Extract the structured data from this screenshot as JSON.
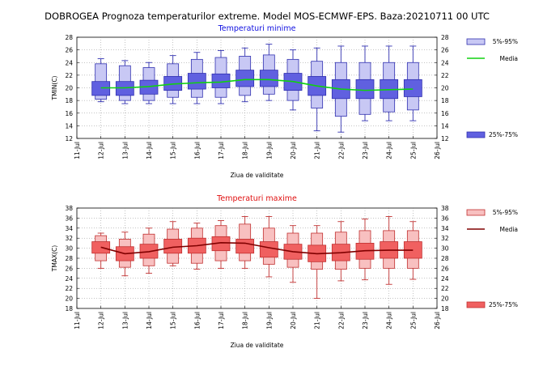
{
  "title": "DOBROGEA  Prognoza temperaturilor extreme.  Model MOS-ECMWF-EPS. Baza:20210711 00 UTC",
  "x_ticks": [
    "11-Jul",
    "12-Jul",
    "13-Jul",
    "14-Jul",
    "15-Jul",
    "16-Jul",
    "17-Jul",
    "18-Jul",
    "19-Jul",
    "20-Jul",
    "21-Jul",
    "22-Jul",
    "23-Jul",
    "24-Jul",
    "25-Jul",
    "26-Jul"
  ],
  "legend_labels": {
    "p5_95": "5%-95%",
    "media": "Media",
    "p25_75": "25%-75%"
  },
  "colors": {
    "min_outer_fill": "#c8c8f4",
    "min_inner_fill": "#6060e0",
    "min_edge": "#3030b0",
    "min_media": "#10d010",
    "max_outer_fill": "#f8c0c0",
    "max_inner_fill": "#f06060",
    "max_edge": "#c03030",
    "max_media": "#800000",
    "title_min": "#1010e0",
    "title_max": "#e01010"
  },
  "chart_data": [
    {
      "type": "box",
      "title": "Temperaturi minime",
      "xlabel": "Ziua de validitate",
      "ylabel": "TMIN(C)",
      "ylim": [
        12,
        28
      ],
      "yticks": [
        12,
        14,
        16,
        18,
        20,
        22,
        24,
        26,
        28
      ],
      "categories": [
        "12-Jul",
        "13-Jul",
        "14-Jul",
        "15-Jul",
        "16-Jul",
        "17-Jul",
        "18-Jul",
        "19-Jul",
        "20-Jul",
        "21-Jul",
        "22-Jul",
        "23-Jul",
        "24-Jul",
        "25-Jul"
      ],
      "series": [
        {
          "name": "5%-95%",
          "low": [
            18.2,
            18.0,
            18.0,
            18.5,
            18.5,
            18.5,
            18.8,
            19.0,
            18.0,
            16.8,
            15.5,
            15.8,
            16.2,
            16.5
          ],
          "high": [
            23.8,
            23.5,
            23.2,
            23.8,
            24.5,
            24.8,
            25.0,
            25.2,
            24.5,
            24.2,
            24.0,
            24.0,
            24.0,
            24.0
          ]
        },
        {
          "name": "25%-75%",
          "low": [
            18.8,
            18.8,
            19.0,
            19.6,
            19.8,
            20.0,
            20.2,
            20.2,
            19.6,
            18.8,
            18.3,
            18.3,
            18.3,
            18.6
          ],
          "high": [
            21.0,
            21.0,
            21.2,
            21.8,
            22.3,
            22.2,
            22.8,
            22.8,
            22.3,
            21.8,
            21.3,
            21.3,
            21.3,
            21.3
          ]
        },
        {
          "name": "Media",
          "values": [
            20.0,
            20.0,
            20.2,
            20.6,
            20.8,
            20.9,
            21.3,
            21.3,
            21.0,
            20.3,
            19.8,
            19.6,
            19.7,
            19.8
          ]
        },
        {
          "name": "min_max",
          "low": [
            17.8,
            17.5,
            17.5,
            17.5,
            17.5,
            17.5,
            17.8,
            18.0,
            16.5,
            13.2,
            13.0,
            14.8,
            14.8,
            14.8
          ],
          "high": [
            24.6,
            24.3,
            24.0,
            25.1,
            25.6,
            25.9,
            26.3,
            26.9,
            26.0,
            26.3,
            26.6,
            26.6,
            26.6,
            26.6
          ]
        }
      ]
    },
    {
      "type": "box",
      "title": "Temperaturi maxime",
      "xlabel": "Ziua de validitate",
      "ylabel": "TMAX(C)",
      "ylim": [
        18,
        38
      ],
      "yticks": [
        18,
        20,
        22,
        24,
        26,
        28,
        30,
        32,
        34,
        36,
        38
      ],
      "categories": [
        "12-Jul",
        "13-Jul",
        "14-Jul",
        "15-Jul",
        "16-Jul",
        "17-Jul",
        "18-Jul",
        "19-Jul",
        "20-Jul",
        "21-Jul",
        "22-Jul",
        "23-Jul",
        "24-Jul",
        "25-Jul"
      ],
      "series": [
        {
          "name": "5%-95%",
          "low": [
            27.5,
            26.2,
            26.5,
            27.0,
            27.0,
            27.5,
            27.5,
            26.8,
            26.2,
            25.8,
            25.8,
            26.0,
            26.0,
            26.0
          ],
          "high": [
            32.5,
            31.8,
            32.8,
            33.8,
            34.0,
            34.5,
            34.8,
            34.0,
            33.0,
            33.0,
            33.2,
            33.5,
            33.5,
            33.5
          ]
        },
        {
          "name": "25%-75%",
          "low": [
            29.0,
            27.5,
            28.0,
            29.0,
            29.0,
            29.5,
            29.0,
            28.2,
            27.8,
            27.3,
            27.5,
            27.8,
            28.0,
            28.0
          ],
          "high": [
            31.3,
            30.3,
            30.8,
            31.8,
            32.0,
            32.3,
            31.8,
            31.3,
            30.8,
            30.6,
            30.8,
            31.0,
            31.3,
            31.3
          ]
        },
        {
          "name": "Media",
          "values": [
            30.2,
            28.9,
            29.3,
            30.2,
            30.5,
            31.1,
            31.0,
            30.1,
            29.3,
            28.9,
            29.1,
            29.5,
            29.6,
            29.6
          ]
        },
        {
          "name": "min_max",
          "low": [
            26.0,
            24.5,
            25.0,
            26.5,
            25.8,
            26.0,
            26.0,
            24.3,
            23.2,
            20.0,
            23.5,
            23.7,
            22.8,
            23.8
          ],
          "high": [
            33.0,
            33.2,
            34.0,
            35.3,
            35.0,
            35.5,
            36.3,
            36.3,
            34.5,
            34.5,
            35.3,
            35.8,
            36.3,
            35.3
          ]
        }
      ]
    }
  ]
}
